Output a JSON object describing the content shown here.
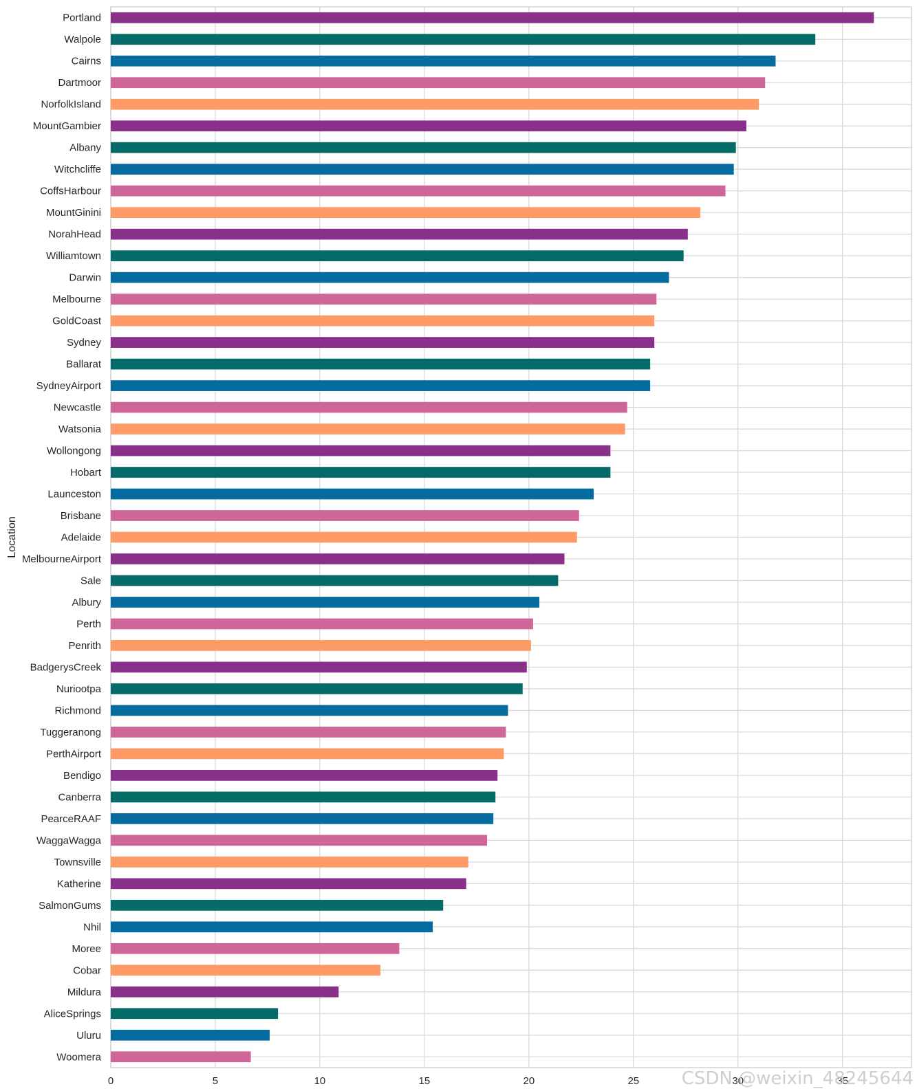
{
  "chart_data": {
    "type": "bar",
    "orientation": "horizontal",
    "ylabel": "Location",
    "xlabel": "",
    "xlim": [
      0,
      38.3
    ],
    "xticks": [
      0,
      5,
      10,
      15,
      20,
      25,
      30,
      35
    ],
    "grid": true,
    "palette": [
      "#88308a",
      "#056b68",
      "#066b9e",
      "#cf6699",
      "#fe9a66"
    ],
    "categories": [
      "Portland",
      "Walpole",
      "Cairns",
      "Dartmoor",
      "NorfolkIsland",
      "MountGambier",
      "Albany",
      "Witchcliffe",
      "CoffsHarbour",
      "MountGinini",
      "NorahHead",
      "Williamtown",
      "Darwin",
      "Melbourne",
      "GoldCoast",
      "Sydney",
      "Ballarat",
      "SydneyAirport",
      "Newcastle",
      "Watsonia",
      "Wollongong",
      "Hobart",
      "Launceston",
      "Brisbane",
      "Adelaide",
      "MelbourneAirport",
      "Sale",
      "Albury",
      "Perth",
      "Penrith",
      "BadgerysCreek",
      "Nuriootpa",
      "Richmond",
      "Tuggeranong",
      "PerthAirport",
      "Bendigo",
      "Canberra",
      "PearceRAAF",
      "WaggaWagga",
      "Townsville",
      "Katherine",
      "SalmonGums",
      "Nhil",
      "Moree",
      "Cobar",
      "Mildura",
      "AliceSprings",
      "Uluru",
      "Woomera"
    ],
    "values": [
      36.5,
      33.7,
      31.8,
      31.3,
      31.0,
      30.4,
      29.9,
      29.8,
      29.4,
      28.2,
      27.6,
      27.4,
      26.7,
      26.1,
      26.0,
      26.0,
      25.8,
      25.8,
      24.7,
      24.6,
      23.9,
      23.9,
      23.1,
      22.4,
      22.3,
      21.7,
      21.4,
      20.5,
      20.2,
      20.1,
      19.9,
      19.7,
      19.0,
      18.9,
      18.8,
      18.5,
      18.4,
      18.3,
      18.0,
      17.1,
      17.0,
      15.9,
      15.4,
      13.8,
      12.9,
      10.9,
      8.0,
      7.6,
      6.7
    ]
  },
  "watermark": "CSDN @weixin_48245644"
}
